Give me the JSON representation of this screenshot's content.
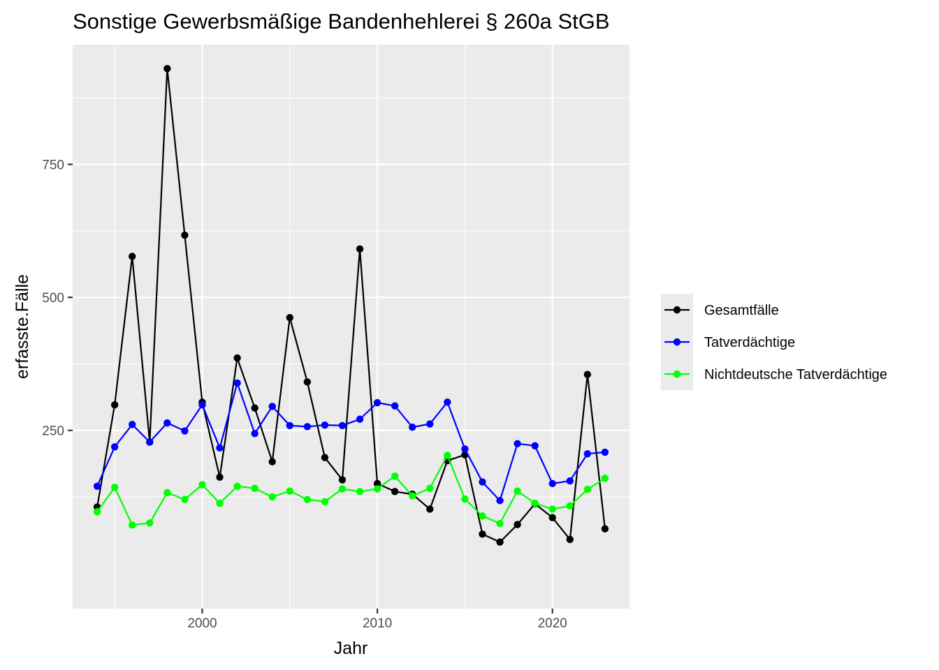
{
  "chart_data": {
    "type": "line",
    "title": "Sonstige Gewerbsmäßige Bandenhehlerei § 260a StGB",
    "xlabel": "Jahr",
    "ylabel": "erfasste.Fälle",
    "xlim": [
      1992.6,
      2024.4
    ],
    "ylim": [
      -85,
      975
    ],
    "x_ticks": [
      2000,
      2010,
      2020
    ],
    "y_ticks": [
      250,
      500,
      750
    ],
    "grid": true,
    "legend_position": "right",
    "x": [
      1994,
      1995,
      1996,
      1997,
      1998,
      1999,
      2000,
      2001,
      2002,
      2003,
      2004,
      2005,
      2006,
      2007,
      2008,
      2009,
      2010,
      2011,
      2012,
      2013,
      2014,
      2015,
      2016,
      2017,
      2018,
      2019,
      2020,
      2021,
      2022,
      2023
    ],
    "series": [
      {
        "name": "Gesamtfälle",
        "color": "#000000",
        "values": [
          106,
          298,
          577,
          228,
          930,
          617,
          303,
          162,
          386,
          292,
          191,
          462,
          341,
          199,
          157,
          591,
          150,
          135,
          130,
          102,
          193,
          204,
          55,
          40,
          73,
          112,
          86,
          45,
          355,
          65
        ]
      },
      {
        "name": "Tatverdächtige",
        "color": "#0000ff",
        "values": [
          145,
          219,
          261,
          228,
          264,
          249,
          298,
          217,
          339,
          244,
          295,
          259,
          257,
          260,
          259,
          271,
          302,
          296,
          256,
          262,
          303,
          215,
          153,
          118,
          225,
          221,
          150,
          155,
          206,
          209
        ]
      },
      {
        "name": "Nichtdeutsche Tatverdächtige",
        "color": "#00ff00",
        "values": [
          97,
          143,
          72,
          76,
          133,
          120,
          148,
          113,
          145,
          141,
          125,
          136,
          120,
          116,
          140,
          135,
          140,
          164,
          127,
          141,
          203,
          121,
          89,
          75,
          136,
          113,
          102,
          108,
          139,
          160
        ]
      }
    ]
  }
}
